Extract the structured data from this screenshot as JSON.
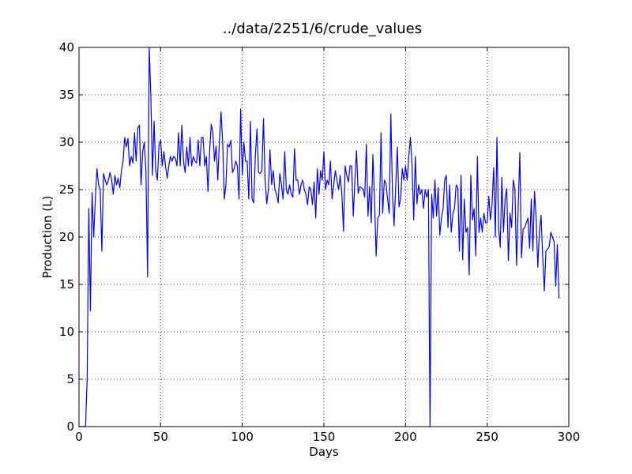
{
  "chart_data": {
    "type": "line",
    "title": "../data/2251/6/crude_values",
    "x_label": "Days",
    "y_label": "Production (L)",
    "x": [
      0,
      1,
      2,
      3,
      4,
      5,
      6,
      7,
      8,
      9,
      10,
      11,
      12,
      13,
      14,
      15,
      16,
      17,
      18,
      19,
      20,
      21,
      22,
      23,
      24,
      25,
      26,
      27,
      28,
      29,
      30,
      31,
      32,
      33,
      34,
      35,
      36,
      37,
      38,
      39,
      40,
      41,
      42,
      43,
      44,
      45,
      46,
      47,
      48,
      49,
      50,
      51,
      52,
      53,
      54,
      55,
      56,
      57,
      58,
      59,
      60,
      61,
      62,
      63,
      64,
      65,
      66,
      67,
      68,
      69,
      70,
      71,
      72,
      73,
      74,
      75,
      76,
      77,
      78,
      79,
      80,
      81,
      82,
      83,
      84,
      85,
      86,
      87,
      88,
      89,
      90,
      91,
      92,
      93,
      94,
      95,
      96,
      97,
      98,
      99,
      100,
      101,
      102,
      103,
      104,
      105,
      106,
      107,
      108,
      109,
      110,
      111,
      112,
      113,
      114,
      115,
      116,
      117,
      118,
      119,
      120,
      121,
      122,
      123,
      124,
      125,
      126,
      127,
      128,
      129,
      130,
      131,
      132,
      133,
      134,
      135,
      136,
      137,
      138,
      139,
      140,
      141,
      142,
      143,
      144,
      145,
      146,
      147,
      148,
      149,
      150,
      151,
      152,
      153,
      154,
      155,
      156,
      157,
      158,
      159,
      160,
      161,
      162,
      163,
      164,
      165,
      166,
      167,
      168,
      169,
      170,
      171,
      172,
      173,
      174,
      175,
      176,
      177,
      178,
      179,
      180,
      181,
      182,
      183,
      184,
      185,
      186,
      187,
      188,
      189,
      190,
      191,
      192,
      193,
      194,
      195,
      196,
      197,
      198,
      199,
      200,
      201,
      202,
      203,
      204,
      205,
      206,
      207,
      208,
      209,
      210,
      211,
      212,
      213,
      214,
      215,
      216,
      217,
      218,
      219,
      220,
      221,
      222,
      223,
      224,
      225,
      226,
      227,
      228,
      229,
      230,
      231,
      232,
      233,
      234,
      235,
      236,
      237,
      238,
      239,
      240,
      241,
      242,
      243,
      244,
      245,
      246,
      247,
      248,
      249,
      250,
      251,
      252,
      253,
      254,
      255,
      256,
      257,
      258,
      259,
      260,
      261,
      262,
      263,
      264,
      265,
      266,
      267,
      268,
      269,
      270,
      271,
      272,
      273,
      274,
      275,
      276,
      277,
      278,
      279,
      280,
      281,
      282,
      283,
      284,
      285,
      286,
      287,
      288,
      289,
      290,
      291,
      292,
      293,
      294
    ],
    "series": [
      {
        "color": "#0000ff",
        "values": [
          0,
          0,
          0,
          0,
          0,
          5,
          23,
          12.2,
          24.7,
          20,
          24,
          27.2,
          25.5,
          25,
          18.5,
          26.7,
          26,
          25.5,
          26,
          26.8,
          26,
          24.5,
          26.5,
          25.5,
          26.2,
          25.2,
          27,
          28,
          30.5,
          29.5,
          30.4,
          27.5,
          28.5,
          27.8,
          31,
          28,
          31.5,
          31.8,
          25.5,
          29,
          30,
          27,
          15.8,
          40,
          35,
          26.5,
          32.2,
          27,
          26,
          29.7,
          30.2,
          27.5,
          29,
          27.5,
          26.2,
          27.5,
          28.5,
          28,
          28.5,
          28.3,
          27.5,
          31,
          27.5,
          31.8,
          28,
          26.8,
          29.5,
          27.5,
          30.5,
          27.5,
          28.5,
          28,
          27.8,
          30.2,
          27.5,
          30.5,
          30.5,
          27.5,
          28.5,
          24.8,
          29,
          31.9,
          31,
          28,
          29.6,
          26,
          30,
          33.2,
          30,
          24,
          25.5,
          29.8,
          29.5,
          30.2,
          26.8,
          27.2,
          28,
          27.5,
          24,
          33.5,
          26.5,
          30,
          28,
          28,
          24,
          32.2,
          24,
          23.6,
          28.5,
          31.4,
          26.8,
          26.7,
          27,
          32.5,
          26,
          23.5,
          25,
          29.2,
          25.5,
          27,
          25,
          24.5,
          23.6,
          26.7,
          25.5,
          24,
          29,
          25,
          24.5,
          25.5,
          24.5,
          24.2,
          29.3,
          26,
          26,
          24.5,
          25.5,
          26,
          25,
          24.5,
          23.4,
          25.3,
          25,
          23.4,
          25.8,
          22,
          27.2,
          24.5,
          27,
          26,
          29,
          25,
          26,
          25.5,
          28,
          24,
          25.5,
          27,
          26,
          25,
          26.5,
          24.5,
          20.6,
          27.5,
          26.5,
          25.8,
          27.5,
          27.5,
          22.2,
          26,
          29.1,
          24.6,
          25.3,
          25.2,
          25,
          24.2,
          29.8,
          22.2,
          25.3,
          21.5,
          28.7,
          24,
          18,
          22,
          22.3,
          31,
          22.5,
          26,
          25.7,
          24,
          22.5,
          33,
          24.5,
          21.2,
          25.5,
          29.5,
          23.2,
          24,
          27.2,
          26,
          27.5,
          26,
          28.5,
          30.5,
          27.5,
          21.8,
          28.5,
          23.5,
          25.5,
          24.5,
          25,
          23,
          25,
          24.2,
          25,
          0,
          24.5,
          22,
          26,
          22.2,
          25.2,
          20.2,
          22,
          23,
          26,
          26.5,
          21,
          25.5,
          20.5,
          22.5,
          23,
          25.5,
          25.2,
          18.5,
          26.5,
          17.6,
          24,
          20.5,
          21,
          16,
          26.5,
          21.8,
          23,
          18,
          28.5,
          20.5,
          22,
          20.5,
          22.5,
          21.5,
          21.5,
          24.3,
          21.8,
          23.5,
          27.3,
          20,
          30.5,
          21,
          18.9,
          26.3,
          20.5,
          24,
          25.1,
          17.5,
          22.5,
          21,
          26,
          25,
          17,
          23,
          28.9,
          17.8,
          20.8,
          21,
          21.5,
          22,
          18.8,
          24,
          18.5,
          24.8,
          22,
          16.8,
          20.5,
          22.3,
          18,
          14.3,
          18.5,
          18.7,
          19,
          20.5,
          20,
          19.5,
          14.8,
          19.2,
          13.5
        ]
      }
    ],
    "xlim": [
      0,
      300
    ],
    "ylim": [
      0,
      40
    ],
    "xticks": [
      0,
      50,
      100,
      150,
      200,
      250,
      300
    ],
    "yticks": [
      0,
      5,
      10,
      15,
      20,
      25,
      30,
      35,
      40
    ],
    "grid": true
  }
}
